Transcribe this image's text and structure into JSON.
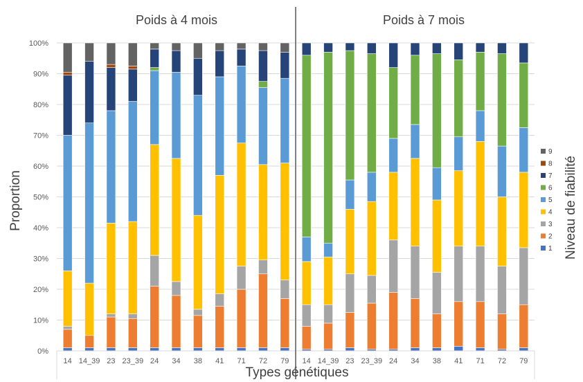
{
  "chart_data": {
    "type": "bar",
    "stacked": true,
    "ylabel": "Proportion",
    "xlabel": "Types génétiques",
    "legend_title": "Niveau de fiabilité",
    "legend_position": "right",
    "ylim": [
      0,
      100
    ],
    "y_ticks": [
      "0%",
      "10%",
      "20%",
      "30%",
      "40%",
      "50%",
      "60%",
      "70%",
      "80%",
      "90%",
      "100%"
    ],
    "grid": true,
    "series_meta": [
      {
        "name": "1",
        "color": "#4472C4"
      },
      {
        "name": "2",
        "color": "#ED7D31"
      },
      {
        "name": "3",
        "color": "#A5A5A5"
      },
      {
        "name": "4",
        "color": "#FFC000"
      },
      {
        "name": "5",
        "color": "#5B9BD5"
      },
      {
        "name": "6",
        "color": "#70AD47"
      },
      {
        "name": "7",
        "color": "#264478"
      },
      {
        "name": "8",
        "color": "#9E480E"
      },
      {
        "name": "9",
        "color": "#636363"
      }
    ],
    "panels": [
      {
        "title": "Poids à 4 mois",
        "categories": [
          "14",
          "14_39",
          "23",
          "23_39",
          "24",
          "34",
          "38",
          "41",
          "71",
          "72",
          "79"
        ],
        "stacks": [
          [
            1,
            6,
            1,
            18,
            44,
            0,
            19.5,
            1,
            9.5
          ],
          [
            1,
            4,
            0,
            17,
            52,
            0,
            20,
            0,
            6
          ],
          [
            1,
            10,
            1,
            29.5,
            36.5,
            0,
            14,
            1,
            7
          ],
          [
            1,
            9.5,
            1.5,
            30,
            39,
            0,
            10.5,
            1,
            7.5
          ],
          [
            1,
            20,
            10,
            36,
            24,
            1,
            6,
            0,
            2
          ],
          [
            1,
            17,
            4.5,
            40,
            28,
            0,
            7,
            0,
            2.5
          ],
          [
            1,
            10.5,
            2,
            30.5,
            39,
            0,
            12,
            0,
            5
          ],
          [
            1,
            13.5,
            4,
            38.5,
            32,
            0,
            8.5,
            0,
            2.5
          ],
          [
            1,
            19,
            7.5,
            40,
            25,
            0,
            5.5,
            0,
            2
          ],
          [
            1,
            24,
            4.5,
            31,
            25,
            2,
            10,
            0,
            2.5
          ],
          [
            1,
            16,
            6,
            38,
            27.5,
            0,
            8.5,
            0,
            3
          ]
        ]
      },
      {
        "title": "Poids à 7 mois",
        "categories": [
          "14",
          "14_39",
          "23",
          "23_39",
          "24",
          "34",
          "38",
          "41",
          "71",
          "72",
          "79"
        ],
        "stacks": [
          [
            0.5,
            7.5,
            7,
            14,
            8,
            59,
            4,
            0,
            0
          ],
          [
            0.5,
            8.5,
            6,
            15.5,
            4.5,
            62,
            3,
            0,
            0
          ],
          [
            1,
            11.5,
            12.5,
            21,
            9.5,
            42,
            2.5,
            0,
            0
          ],
          [
            0.5,
            15,
            9,
            24,
            9.5,
            38.5,
            3.5,
            0,
            0
          ],
          [
            0.5,
            18.5,
            17,
            22,
            11,
            23,
            8,
            0,
            0
          ],
          [
            1,
            16,
            17,
            28.5,
            11,
            22.5,
            4,
            0,
            0
          ],
          [
            1,
            11,
            13.5,
            23.5,
            10.5,
            37,
            3.5,
            0,
            0
          ],
          [
            1.5,
            14.5,
            18,
            24.5,
            11,
            25,
            5.5,
            0,
            0
          ],
          [
            1,
            15,
            18,
            34,
            10,
            19,
            3,
            0,
            0
          ],
          [
            0.5,
            11.5,
            15.5,
            22.5,
            16.5,
            30,
            3.5,
            0,
            0
          ],
          [
            1,
            14,
            18.5,
            24.5,
            14.5,
            21,
            6.5,
            0,
            0
          ]
        ]
      }
    ]
  }
}
